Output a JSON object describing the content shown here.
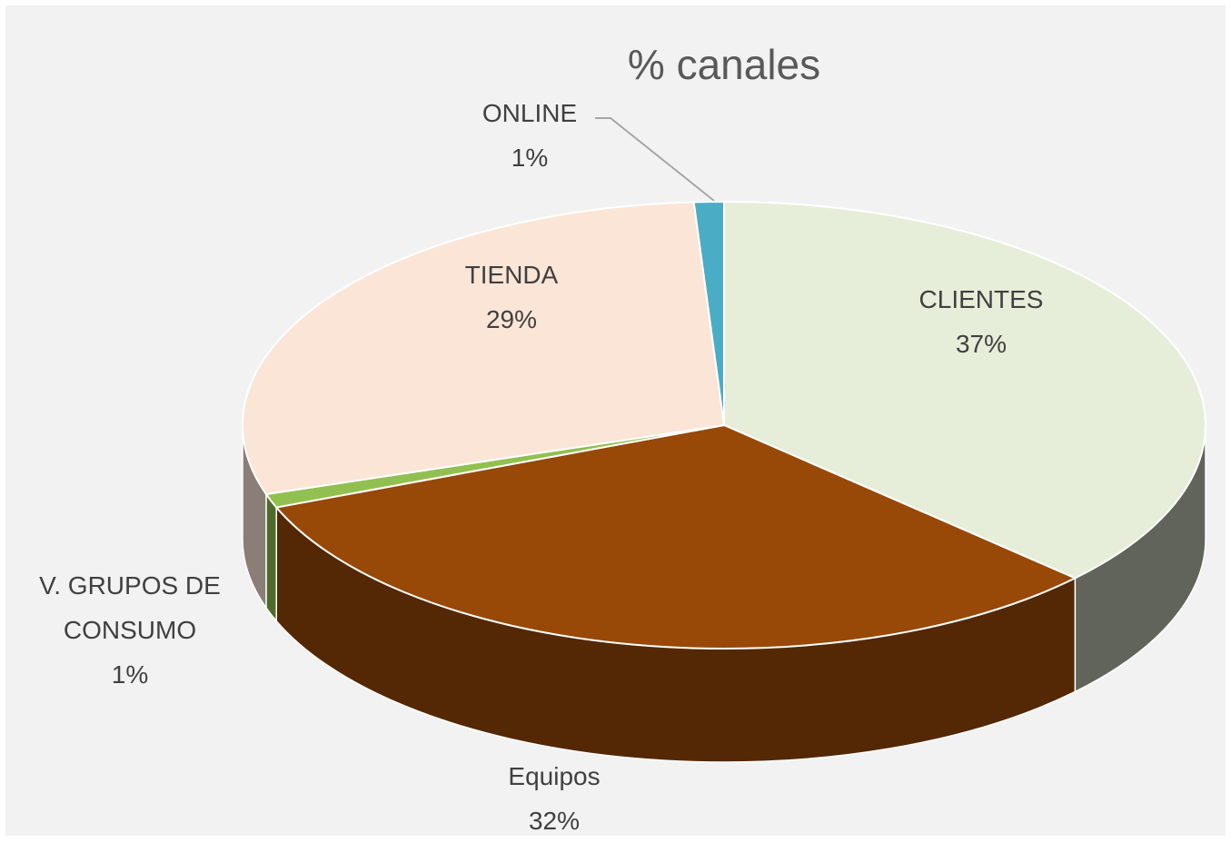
{
  "chart_data": {
    "type": "pie",
    "title": "% canales",
    "categories": [
      "CLIENTES",
      "Equipos",
      "V. GRUPOS DE CONSUMO",
      "TIENDA",
      "ONLINE"
    ],
    "values": [
      37,
      32,
      1,
      29,
      1
    ],
    "value_labels": [
      "37%",
      "32%",
      "1%",
      "29%",
      "1%"
    ],
    "colors": [
      "#e6eed9",
      "#984807",
      "#92c050",
      "#fbe5d6",
      "#4bacc6"
    ]
  }
}
